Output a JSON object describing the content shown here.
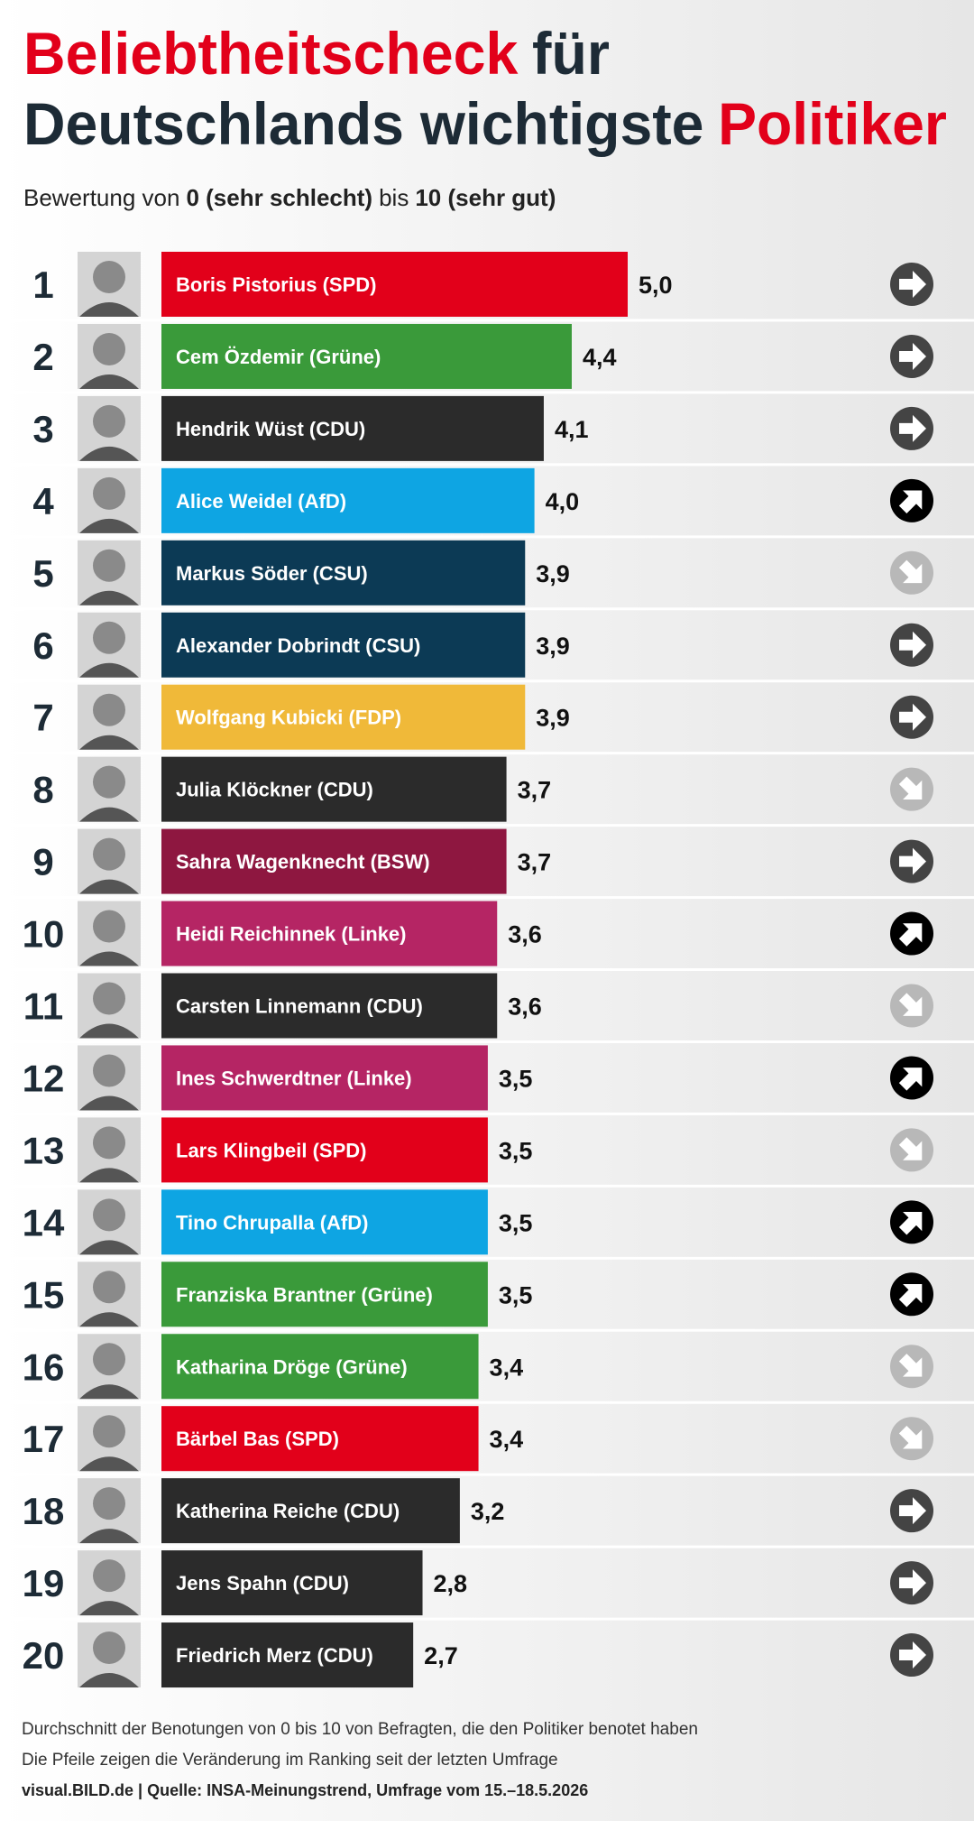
{
  "chart_data": {
    "type": "hbar",
    "title_lines": [
      [
        {
          "text": "Beliebtheitscheck",
          "color": "#e2001a"
        },
        {
          "text": "für",
          "color": "#1d2b36"
        }
      ],
      [
        {
          "text": "Deutschlands wichtigste",
          "color": "#1d2b36"
        },
        {
          "text": "Politiker",
          "color": "#e2001a"
        }
      ]
    ],
    "subtitle": [
      {
        "text": "Bewertung von",
        "bold": false
      },
      {
        "text": "0 (sehr schlecht)",
        "bold": true
      },
      {
        "text": "bis",
        "bold": false
      },
      {
        "text": "10 (sehr gut)",
        "bold": true
      }
    ],
    "ranks": [
      1,
      2,
      3,
      4,
      5,
      6,
      7,
      8,
      9,
      10,
      11,
      12,
      13,
      14,
      15,
      16,
      17,
      18,
      19,
      20
    ],
    "categories": [
      "Boris Pistorius (SPD)",
      "Cem Özdemir (Grüne)",
      "Hendrik Wüst (CDU)",
      "Alice Weidel (AfD)",
      "Markus Söder (CSU)",
      "Alexander Dobrindt (CSU)",
      "Wolfgang Kubicki (FDP)",
      "Julia Klöckner (CDU)",
      "Sahra Wagenknecht (BSW)",
      "Heidi Reichinnek (Linke)",
      "Carsten Linnemann (CDU)",
      "Ines Schwerdtner (Linke)",
      "Lars Klingbeil (SPD)",
      "Tino Chrupalla (AfD)",
      "Franziska Brantner (Grüne)",
      "Katharina Dröge (Grüne)",
      "Bärbel Bas (SPD)",
      "Katherina Reiche (CDU)",
      "Jens Spahn (CDU)",
      "Friedrich Merz (CDU)"
    ],
    "values": [
      5.0,
      4.4,
      4.1,
      4.0,
      3.9,
      3.9,
      3.9,
      3.7,
      3.7,
      3.6,
      3.6,
      3.5,
      3.5,
      3.5,
      3.5,
      3.4,
      3.4,
      3.2,
      2.8,
      2.7
    ],
    "value_labels": [
      "5,0",
      "4,4",
      "4,1",
      "4,0",
      "3,9",
      "3,9",
      "3,9",
      "3,7",
      "3,7",
      "3,6",
      "3,6",
      "3,5",
      "3,5",
      "3,5",
      "3,5",
      "3,4",
      "3,4",
      "3,2",
      "2,8",
      "2,7"
    ],
    "colors": [
      "#e2001a",
      "#3a9a3a",
      "#2b2b2b",
      "#0ea5e3",
      "#0c3a55",
      "#0c3a55",
      "#f0b939",
      "#2b2b2b",
      "#8e1740",
      "#b52564",
      "#2b2b2b",
      "#b52564",
      "#e2001a",
      "#0ea5e3",
      "#3a9a3a",
      "#3a9a3a",
      "#e2001a",
      "#2b2b2b",
      "#2b2b2b",
      "#2b2b2b"
    ],
    "trends": [
      "same",
      "same",
      "same",
      "up",
      "down",
      "same",
      "same",
      "down",
      "same",
      "up",
      "down",
      "up",
      "down",
      "up",
      "up",
      "down",
      "down",
      "same",
      "same",
      "same"
    ],
    "trend_colors": {
      "same": "#444444",
      "up": "#000000",
      "down": "#b8b8b8"
    },
    "notes": [
      "Durchschnitt der Benotungen von 0 bis 10 von Befragten, die den Politiker benotet haben",
      "Die Pfeile zeigen die Veränderung im Ranking seit der letzten Umfrage"
    ],
    "source": "visual.BILD.de | Quelle: INSA-Meinungstrend, Umfrage vom 15.–18.5.2026"
  }
}
